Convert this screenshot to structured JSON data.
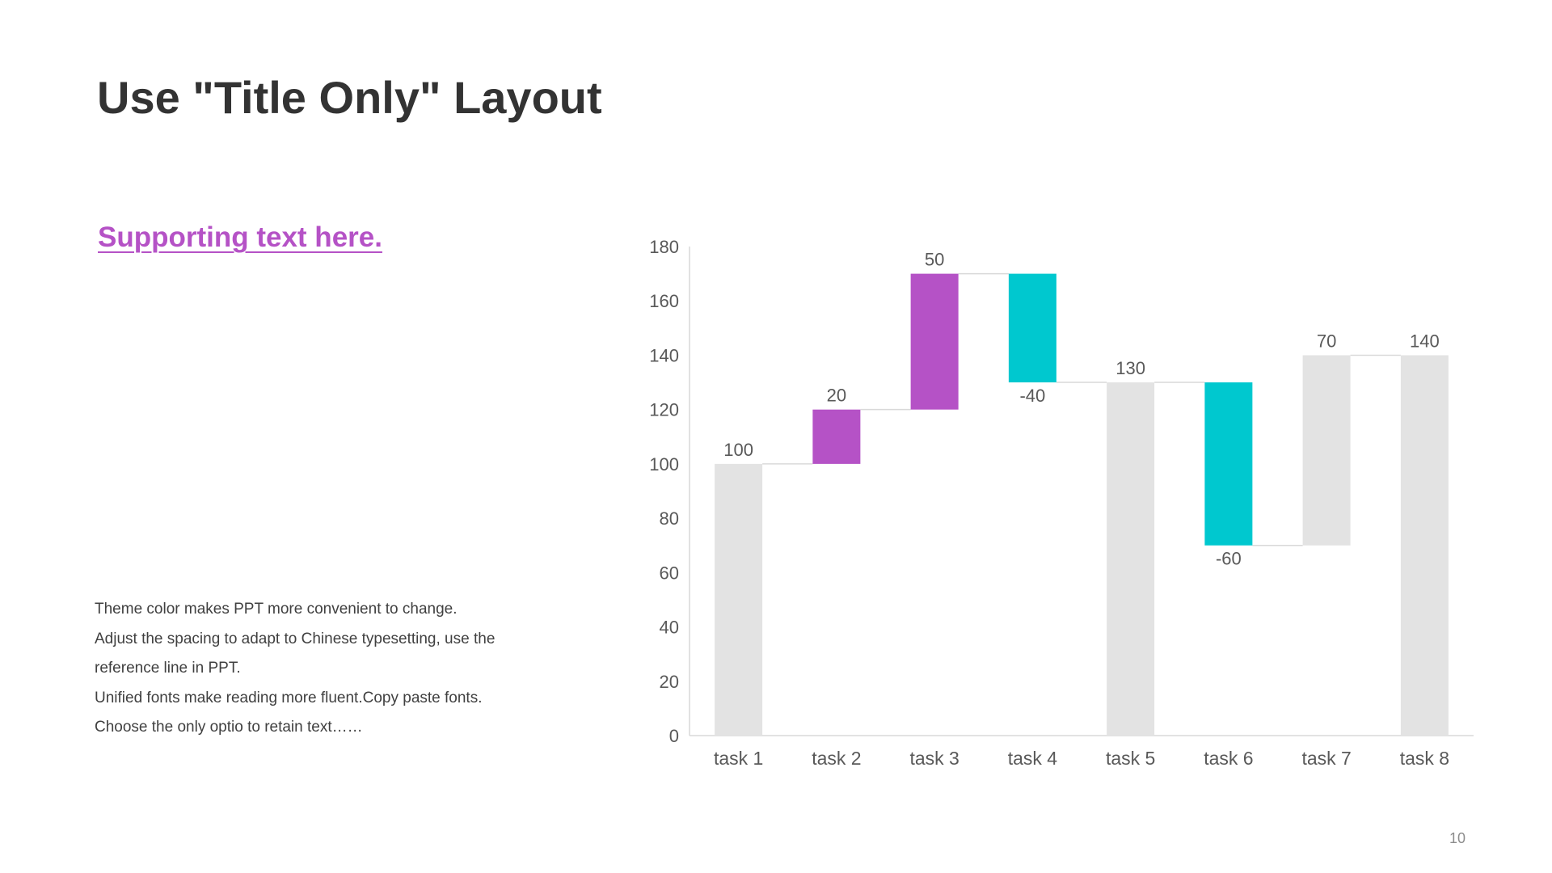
{
  "slide": {
    "title": "Use \"Title Only\" Layout",
    "supporting_text": "Supporting text here.",
    "body_lines": [
      "Theme  color makes PPT more convenient  to change.",
      "Adjust the spacing to adapt to Chinese  typesetting, use the",
      "reference line  in PPT.",
      "Unified  fonts make reading more fluent.Copy paste fonts.",
      "Choose the only optio to retain text……"
    ],
    "page_number": "10"
  },
  "colors": {
    "accent": "#b552c6",
    "increase": "#b552c6",
    "decrease": "#00c8cf",
    "total": "#e3e3e3",
    "axis": "#d9d9d9",
    "label": "#595959"
  },
  "chart_data": {
    "type": "bar",
    "subtype": "waterfall",
    "categories": [
      "task 1",
      "task 2",
      "task 3",
      "task 4",
      "task 5",
      "task 6",
      "task 7",
      "task 8"
    ],
    "values": [
      100,
      20,
      50,
      -40,
      130,
      -60,
      70,
      140
    ],
    "data_labels": [
      "100",
      "20",
      "50",
      "-40",
      "130",
      "-60",
      "70",
      "140"
    ],
    "bar_kind": [
      "total",
      "increase",
      "increase",
      "decrease",
      "total",
      "decrease",
      "increase-gray",
      "total"
    ],
    "ylim": [
      0,
      180
    ],
    "yticks": [
      0,
      20,
      40,
      60,
      80,
      100,
      120,
      140,
      160,
      180
    ],
    "grid": false,
    "connectors": true,
    "title": "",
    "xlabel": "",
    "ylabel": ""
  }
}
